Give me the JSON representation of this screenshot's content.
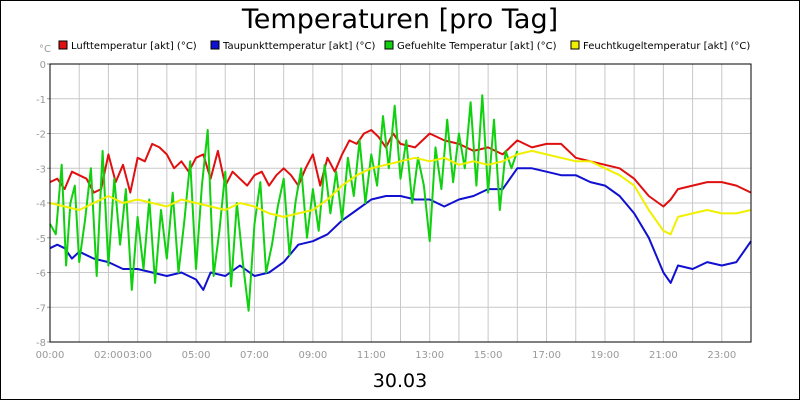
{
  "chart_data": {
    "type": "line",
    "title": "Temperaturen [pro Tag]",
    "footer": "30.03",
    "y_unit": "°C",
    "ylim": [
      -8,
      0
    ],
    "y_ticks": [
      "0",
      "-1",
      "-2",
      "-3",
      "-4",
      "-5",
      "-6",
      "-7",
      "-8"
    ],
    "xlim": [
      0,
      24
    ],
    "x_tick_labels": [
      "00:00",
      "02:00",
      "03:00",
      "05:00",
      "07:00",
      "09:00",
      "11:00",
      "13:00",
      "15:00",
      "17:00",
      "19:00",
      "21:00",
      "23:00"
    ],
    "x_tick_hours": [
      0,
      2,
      3,
      5,
      7,
      9,
      11,
      13,
      15,
      17,
      19,
      21,
      23
    ],
    "grid": true,
    "legend_position": "top",
    "series": [
      {
        "name": "Lufttemperatur [akt] (°C)",
        "color": "#e01010",
        "x": [
          0,
          0.25,
          0.5,
          0.75,
          1,
          1.25,
          1.5,
          1.75,
          2,
          2.25,
          2.5,
          2.75,
          3,
          3.25,
          3.5,
          3.75,
          4,
          4.25,
          4.5,
          4.75,
          5,
          5.25,
          5.5,
          5.75,
          6,
          6.25,
          6.5,
          6.75,
          7,
          7.25,
          7.5,
          7.75,
          8,
          8.25,
          8.5,
          8.75,
          9,
          9.25,
          9.5,
          9.75,
          10,
          10.25,
          10.5,
          10.75,
          11,
          11.25,
          11.5,
          11.75,
          12,
          12.5,
          13,
          13.5,
          14,
          14.5,
          15,
          15.5,
          16,
          16.5,
          17,
          17.5,
          18,
          18.5,
          19,
          19.5,
          20,
          20.5,
          21,
          21.25,
          21.5,
          22,
          22.5,
          23,
          23.5,
          24
        ],
        "y": [
          -3.4,
          -3.3,
          -3.6,
          -3.1,
          -3.2,
          -3.3,
          -3.7,
          -3.6,
          -2.6,
          -3.4,
          -2.9,
          -3.7,
          -2.7,
          -2.8,
          -2.3,
          -2.4,
          -2.6,
          -3.0,
          -2.8,
          -3.1,
          -2.7,
          -2.6,
          -3.3,
          -2.5,
          -3.5,
          -3.1,
          -3.3,
          -3.5,
          -3.2,
          -3.1,
          -3.5,
          -3.2,
          -3.0,
          -3.2,
          -3.5,
          -3.0,
          -2.6,
          -3.5,
          -2.7,
          -3.1,
          -2.6,
          -2.2,
          -2.3,
          -2.0,
          -1.9,
          -2.1,
          -2.4,
          -2.0,
          -2.3,
          -2.4,
          -2.0,
          -2.2,
          -2.3,
          -2.5,
          -2.4,
          -2.6,
          -2.2,
          -2.4,
          -2.3,
          -2.3,
          -2.7,
          -2.8,
          -2.9,
          -3.0,
          -3.3,
          -3.8,
          -4.1,
          -3.9,
          -3.6,
          -3.5,
          -3.4,
          -3.4,
          -3.5,
          -3.7
        ]
      },
      {
        "name": "Taupunkttemperatur [akt] (°C)",
        "color": "#1010d0",
        "x": [
          0,
          0.25,
          0.5,
          0.75,
          1,
          1.5,
          2,
          2.5,
          3,
          3.5,
          4,
          4.5,
          5,
          5.25,
          5.5,
          6,
          6.5,
          7,
          7.5,
          8,
          8.5,
          9,
          9.5,
          10,
          10.5,
          11,
          11.5,
          12,
          12.5,
          13,
          13.5,
          14,
          14.5,
          15,
          15.5,
          16,
          16.5,
          17,
          17.5,
          18,
          18.5,
          19,
          19.5,
          20,
          20.5,
          21,
          21.25,
          21.5,
          22,
          22.5,
          23,
          23.5,
          24
        ],
        "y": [
          -5.3,
          -5.2,
          -5.3,
          -5.6,
          -5.4,
          -5.6,
          -5.7,
          -5.9,
          -5.9,
          -6.0,
          -6.1,
          -6.0,
          -6.2,
          -6.5,
          -6.0,
          -6.1,
          -5.8,
          -6.1,
          -6.0,
          -5.7,
          -5.2,
          -5.1,
          -4.9,
          -4.5,
          -4.2,
          -3.9,
          -3.8,
          -3.8,
          -3.9,
          -3.9,
          -4.1,
          -3.9,
          -3.8,
          -3.6,
          -3.6,
          -3.0,
          -3.0,
          -3.1,
          -3.2,
          -3.2,
          -3.4,
          -3.5,
          -3.8,
          -4.3,
          -5.0,
          -6.0,
          -6.3,
          -5.8,
          -5.9,
          -5.7,
          -5.8,
          -5.7,
          -5.1
        ]
      },
      {
        "name": "Gefuehlte Temperatur [akt] (°C)",
        "color": "#10d010",
        "x": [
          0,
          0.2,
          0.4,
          0.55,
          0.7,
          0.85,
          1,
          1.2,
          1.4,
          1.6,
          1.8,
          2,
          2.2,
          2.4,
          2.6,
          2.8,
          3,
          3.2,
          3.4,
          3.6,
          3.8,
          4,
          4.2,
          4.4,
          4.6,
          4.8,
          5,
          5.2,
          5.4,
          5.6,
          5.8,
          6,
          6.2,
          6.4,
          6.6,
          6.8,
          7,
          7.2,
          7.4,
          7.6,
          7.8,
          8,
          8.2,
          8.4,
          8.6,
          8.8,
          9,
          9.2,
          9.4,
          9.6,
          9.8,
          10,
          10.2,
          10.4,
          10.6,
          10.8,
          11,
          11.2,
          11.4,
          11.6,
          11.8,
          12,
          12.2,
          12.4,
          12.6,
          12.8,
          13,
          13.2,
          13.4,
          13.6,
          13.8,
          14,
          14.2,
          14.4,
          14.6,
          14.8,
          15,
          15.2,
          15.4,
          15.6,
          15.8,
          16
        ],
        "y": [
          -4.6,
          -4.9,
          -2.9,
          -5.8,
          -4.0,
          -3.5,
          -5.7,
          -4.5,
          -3.0,
          -6.1,
          -2.5,
          -5.8,
          -3.3,
          -5.2,
          -3.6,
          -6.5,
          -4.4,
          -5.9,
          -3.9,
          -6.3,
          -4.2,
          -5.6,
          -3.7,
          -6.0,
          -4.5,
          -2.8,
          -5.9,
          -3.5,
          -1.9,
          -6.1,
          -4.8,
          -3.1,
          -6.4,
          -4.0,
          -5.7,
          -7.1,
          -4.6,
          -3.4,
          -6.0,
          -5.2,
          -4.1,
          -3.3,
          -5.5,
          -4.0,
          -3.0,
          -5.0,
          -3.6,
          -4.8,
          -2.9,
          -4.3,
          -3.1,
          -4.5,
          -2.7,
          -3.8,
          -2.2,
          -4.0,
          -2.6,
          -3.5,
          -1.5,
          -3.0,
          -1.2,
          -3.3,
          -2.2,
          -4.0,
          -2.7,
          -3.5,
          -5.1,
          -2.4,
          -3.6,
          -1.6,
          -3.4,
          -2.0,
          -3.0,
          -1.1,
          -3.5,
          -0.9,
          -3.7,
          -1.6,
          -4.2,
          -2.5,
          -3.0,
          -2.5
        ]
      },
      {
        "name": "Feuchtkugeltemperatur [akt] (°C)",
        "color": "#f0f000",
        "x": [
          0,
          0.5,
          1,
          1.5,
          2,
          2.5,
          3,
          3.5,
          4,
          4.5,
          5,
          5.5,
          6,
          6.5,
          7,
          7.5,
          8,
          8.5,
          9,
          9.5,
          10,
          10.5,
          11,
          11.5,
          12,
          12.5,
          13,
          13.5,
          14,
          14.5,
          15,
          15.5,
          16,
          16.5,
          17,
          17.5,
          18,
          18.5,
          19,
          19.5,
          20,
          20.5,
          21,
          21.25,
          21.5,
          22,
          22.5,
          23,
          23.5,
          24
        ],
        "y": [
          -4.0,
          -4.1,
          -4.2,
          -4.0,
          -3.8,
          -4.0,
          -3.9,
          -4.0,
          -4.1,
          -3.9,
          -4.0,
          -4.1,
          -4.2,
          -4.0,
          -4.1,
          -4.3,
          -4.4,
          -4.3,
          -4.2,
          -3.9,
          -3.5,
          -3.2,
          -3.0,
          -2.9,
          -2.8,
          -2.7,
          -2.8,
          -2.7,
          -2.9,
          -2.8,
          -2.9,
          -2.8,
          -2.6,
          -2.5,
          -2.6,
          -2.7,
          -2.8,
          -2.8,
          -3.0,
          -3.2,
          -3.5,
          -4.2,
          -4.8,
          -4.9,
          -4.4,
          -4.3,
          -4.2,
          -4.3,
          -4.3,
          -4.2
        ]
      }
    ]
  }
}
